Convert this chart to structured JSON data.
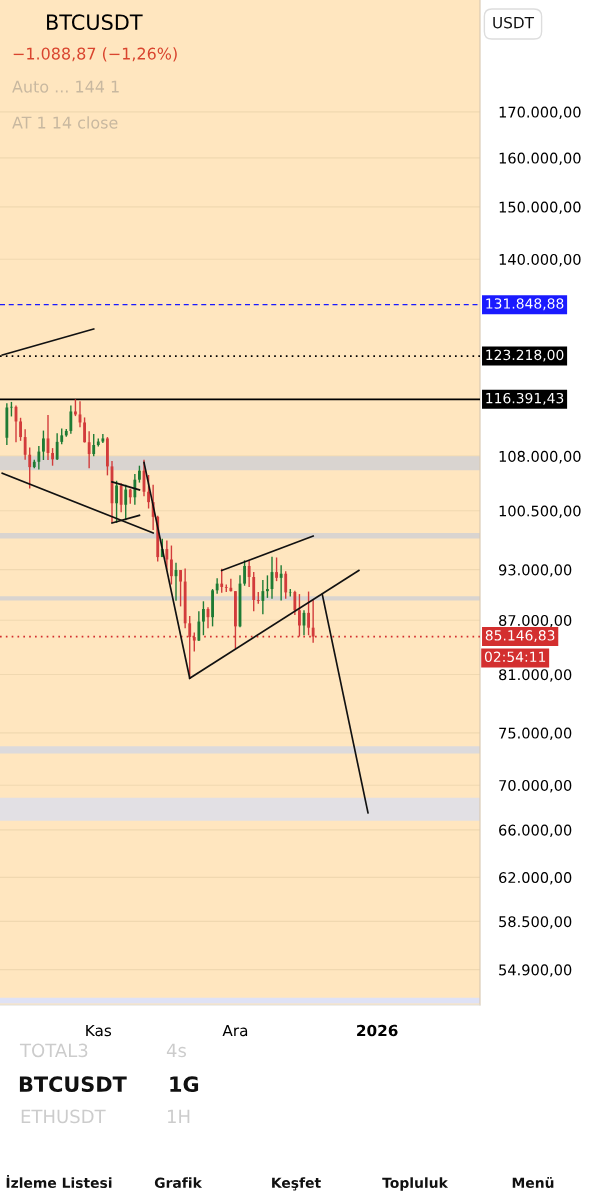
{
  "chart_data": {
    "type": "candlestick",
    "title": "BTCUSDT",
    "subtitle": "−1.088,87 (−1,26%)",
    "categories": [
      null,
      null,
      null,
      null,
      null,
      null,
      null,
      null,
      null,
      null,
      null,
      null,
      null,
      null,
      null,
      null,
      null,
      null,
      null,
      null,
      null,
      "Kas",
      null,
      null,
      null,
      null,
      null,
      null,
      null,
      null,
      null,
      null,
      null,
      null,
      null,
      null,
      null,
      null,
      null,
      null,
      null,
      null,
      null,
      null,
      null,
      null,
      null,
      null,
      null,
      null,
      null,
      "Ara",
      null,
      null,
      null,
      null,
      null,
      null,
      null,
      null,
      null,
      null,
      null,
      null,
      null,
      null,
      null,
      null,
      null,
      null,
      null,
      null,
      null,
      null,
      null,
      null,
      null,
      null,
      null,
      null,
      null,
      null,
      "2026",
      null,
      null,
      null,
      null,
      null,
      null,
      null,
      null,
      null,
      null,
      null,
      null,
      null,
      null,
      null,
      null,
      null,
      null,
      null,
      null,
      null,
      null
    ],
    "ohlc": [
      null,
      [
        110650,
        115800,
        109600,
        115150
      ],
      [
        115150,
        116000,
        113800,
        115250
      ],
      [
        115250,
        115450,
        110000,
        113050
      ],
      [
        113050,
        113600,
        110200,
        110750
      ],
      [
        110750,
        111900,
        107500,
        108200
      ],
      [
        108200,
        109250,
        103500,
        106450
      ],
      [
        106450,
        107500,
        106300,
        107200
      ],
      [
        107200,
        109450,
        106100,
        108650
      ],
      [
        108650,
        111700,
        107450,
        110550
      ],
      [
        110550,
        114000,
        107450,
        108450
      ],
      [
        108450,
        109150,
        106650,
        107550
      ],
      [
        107550,
        111300,
        107450,
        110050
      ],
      [
        110050,
        112000,
        109700,
        111000
      ],
      [
        111000,
        111950,
        110800,
        111650
      ],
      [
        111650,
        115450,
        111250,
        114550
      ],
      [
        114550,
        116400,
        113850,
        114100
      ],
      [
        114100,
        116100,
        112200,
        112900
      ],
      [
        112900,
        113650,
        109950,
        110000
      ],
      [
        110000,
        111600,
        106300,
        108300
      ],
      [
        108300,
        111200,
        108000,
        109600
      ],
      [
        109600,
        110550,
        109400,
        110100
      ],
      [
        110100,
        111200,
        109900,
        110550
      ],
      [
        110550,
        110750,
        105300,
        106550
      ],
      [
        106550,
        107300,
        98950,
        101500
      ],
      [
        101500,
        104550,
        98900,
        103900
      ],
      [
        103900,
        104200,
        100300,
        101300
      ],
      [
        101300,
        104000,
        99250,
        103350
      ],
      [
        103350,
        103450,
        101450,
        102300
      ],
      [
        102300,
        105500,
        101300,
        104700
      ],
      [
        104700,
        106650,
        104300,
        105950
      ],
      [
        105950,
        107500,
        102450,
        103050
      ],
      [
        103050,
        105350,
        100800,
        101650
      ],
      [
        101650,
        104000,
        98000,
        99700
      ],
      [
        99700,
        99850,
        94000,
        94550
      ],
      [
        94550,
        96850,
        94550,
        95550
      ],
      [
        95550,
        96650,
        93000,
        94250
      ],
      [
        94250,
        96000,
        91200,
        92200
      ],
      [
        92200,
        93850,
        89250,
        92950
      ],
      [
        92950,
        92950,
        88600,
        91550
      ],
      [
        91550,
        93150,
        86100,
        86650
      ],
      [
        86650,
        87500,
        80600,
        85100
      ],
      [
        85100,
        85600,
        83500,
        84700
      ],
      [
        84700,
        88050,
        84650,
        86850
      ],
      [
        86850,
        89200,
        85300,
        88300
      ],
      [
        88300,
        88500,
        86100,
        87350
      ],
      [
        87350,
        90650,
        86300,
        90500
      ],
      [
        90500,
        91950,
        90100,
        91300
      ],
      [
        91300,
        93100,
        90200,
        90900
      ],
      [
        90900,
        91200,
        90300,
        90800
      ],
      [
        90800,
        91900,
        90350,
        90400
      ],
      [
        90400,
        90400,
        83800,
        86300
      ],
      [
        86300,
        92300,
        86200,
        91300
      ],
      [
        91300,
        94150,
        91050,
        93450
      ],
      [
        93450,
        94100,
        90900,
        92100
      ],
      [
        92100,
        92700,
        88050,
        89350
      ],
      [
        89350,
        90300,
        88900,
        89250
      ],
      [
        89250,
        91750,
        87700,
        90400
      ],
      [
        90400,
        92300,
        89600,
        90650
      ],
      [
        90650,
        94600,
        89500,
        92700
      ],
      [
        92700,
        94500,
        91600,
        92000
      ],
      [
        92000,
        93550,
        89300,
        92500
      ],
      [
        92500,
        92800,
        89500,
        90250
      ],
      [
        90250,
        90650,
        89750,
        90300
      ],
      [
        90300,
        90450,
        87600,
        88150
      ],
      [
        88150,
        90050,
        85150,
        86400
      ],
      [
        86400,
        88150,
        85300,
        87850
      ],
      [
        87850,
        90350,
        85300,
        86150
      ],
      [
        86150,
        89450,
        84450,
        85150
      ],
      null,
      null,
      null,
      null,
      null,
      null,
      null,
      null,
      null,
      null,
      null,
      null,
      null,
      null,
      null,
      null,
      null,
      null,
      null,
      null,
      null,
      null,
      null,
      null,
      null,
      null,
      null,
      null,
      null,
      null,
      null,
      null,
      null,
      null,
      null,
      null
    ],
    "series": [
      {
        "type": "line",
        "color": "#111111",
        "values": [
          123400,
          null,
          null,
          null,
          null,
          null,
          null,
          null,
          null,
          null,
          null,
          null,
          null,
          null,
          null,
          null,
          null,
          null,
          null,
          null,
          127700,
          null,
          null,
          null,
          null,
          null,
          null,
          null,
          null,
          null,
          null,
          null,
          null,
          null,
          null,
          null,
          null,
          null,
          null,
          null,
          null,
          null,
          null,
          null,
          null,
          null,
          null,
          null,
          null,
          null,
          null,
          null,
          null,
          null,
          null,
          null,
          null,
          null,
          null,
          null,
          null,
          null,
          null,
          null,
          null,
          null,
          null,
          null,
          null,
          null,
          null,
          null,
          null,
          null,
          null,
          null,
          null,
          null,
          null,
          null,
          null,
          null,
          null,
          null,
          null,
          null,
          null,
          null,
          null,
          null,
          null,
          null,
          null,
          null,
          null,
          null,
          null,
          null,
          null,
          null,
          null,
          null,
          null,
          null,
          null
        ]
      },
      {
        "type": "line",
        "color": "#111111",
        "values": [
          105600,
          null,
          null,
          null,
          null,
          null,
          null,
          null,
          null,
          null,
          null,
          null,
          null,
          null,
          null,
          null,
          null,
          null,
          null,
          null,
          null,
          null,
          null,
          null,
          null,
          null,
          null,
          null,
          null,
          null,
          null,
          null,
          null,
          97600,
          null,
          null,
          null,
          null,
          null,
          null,
          null,
          null,
          null,
          null,
          null,
          null,
          null,
          null,
          null,
          null,
          null,
          null,
          null,
          null,
          null,
          null,
          null,
          null,
          null,
          null,
          null,
          null,
          null,
          null,
          null,
          null,
          null,
          null,
          null,
          null,
          null,
          null,
          null,
          null,
          null,
          null,
          null,
          null,
          null,
          null,
          null,
          null,
          null,
          null,
          null,
          null,
          null,
          null,
          null,
          null,
          null,
          null,
          null,
          null,
          null,
          null,
          null,
          null,
          null,
          null,
          null,
          null,
          null,
          null,
          null
        ]
      },
      {
        "type": "line",
        "color": "#111111",
        "values": [
          null,
          null,
          null,
          null,
          null,
          null,
          null,
          null,
          null,
          null,
          null,
          null,
          null,
          null,
          null,
          null,
          null,
          null,
          null,
          null,
          null,
          null,
          null,
          null,
          104400,
          null,
          null,
          null,
          null,
          null,
          103300,
          null,
          null,
          null,
          null,
          null,
          null,
          null,
          null,
          null,
          null,
          null,
          null,
          null,
          null,
          null,
          null,
          null,
          null,
          null,
          null,
          null,
          null,
          null,
          null,
          null,
          null,
          null,
          null,
          null,
          null,
          null,
          null,
          null,
          null,
          null,
          null,
          null,
          null,
          null,
          null,
          null,
          null,
          null,
          null,
          null,
          null,
          null,
          null,
          null,
          null,
          null,
          null,
          null,
          null,
          null,
          null,
          null,
          null,
          null,
          null,
          null,
          null,
          null,
          null,
          null,
          null,
          null,
          null,
          null,
          null,
          null,
          null,
          null,
          null
        ]
      },
      {
        "type": "line",
        "color": "#111111",
        "values": [
          null,
          null,
          null,
          null,
          null,
          null,
          null,
          null,
          null,
          null,
          null,
          null,
          null,
          null,
          null,
          null,
          null,
          null,
          null,
          null,
          null,
          null,
          null,
          null,
          98900,
          null,
          null,
          null,
          null,
          null,
          99900,
          null,
          null,
          null,
          null,
          null,
          null,
          null,
          null,
          null,
          null,
          null,
          null,
          null,
          null,
          null,
          null,
          null,
          null,
          null,
          null,
          null,
          null,
          null,
          null,
          null,
          null,
          null,
          null,
          null,
          null,
          null,
          null,
          null,
          null,
          null,
          null,
          null,
          null,
          null,
          null,
          null,
          null,
          null,
          null,
          null,
          null,
          null,
          null,
          null,
          null,
          null,
          null,
          null,
          null,
          null,
          null,
          null,
          null,
          null,
          null,
          null,
          null,
          null,
          null,
          null,
          null,
          null,
          null,
          null,
          null,
          null,
          null,
          null,
          null
        ]
      },
      {
        "type": "line",
        "color": "#111111",
        "values": [
          null,
          null,
          null,
          null,
          null,
          null,
          null,
          null,
          null,
          null,
          null,
          null,
          null,
          null,
          null,
          null,
          null,
          null,
          null,
          null,
          null,
          null,
          null,
          null,
          null,
          null,
          null,
          null,
          null,
          null,
          null,
          107100,
          null,
          null,
          null,
          null,
          null,
          null,
          null,
          null,
          null,
          80600,
          null,
          null,
          null,
          null,
          null,
          null,
          null,
          null,
          null,
          null,
          null,
          null,
          null,
          null,
          null,
          null,
          null,
          null,
          null,
          null,
          null,
          null,
          null,
          null,
          null,
          null,
          null,
          null,
          null,
          null,
          null,
          null,
          null,
          null,
          null,
          null,
          null,
          null,
          null,
          null,
          null,
          null,
          null,
          null,
          null,
          null,
          null,
          null,
          null,
          null,
          null,
          null,
          null,
          null,
          null,
          null,
          null,
          null,
          null,
          null,
          null,
          null,
          null
        ]
      },
      {
        "type": "line",
        "color": "#111111",
        "values": [
          null,
          null,
          null,
          null,
          null,
          null,
          null,
          null,
          null,
          null,
          null,
          null,
          null,
          null,
          null,
          null,
          null,
          null,
          null,
          null,
          null,
          null,
          null,
          null,
          null,
          null,
          null,
          null,
          null,
          null,
          null,
          null,
          null,
          null,
          null,
          null,
          null,
          null,
          null,
          null,
          null,
          80600,
          null,
          null,
          null,
          null,
          null,
          null,
          null,
          null,
          null,
          null,
          null,
          null,
          null,
          null,
          null,
          null,
          null,
          null,
          null,
          null,
          null,
          null,
          null,
          null,
          null,
          null,
          null,
          null,
          null,
          null,
          null,
          null,
          null,
          null,
          null,
          null,
          92900,
          null,
          null,
          null,
          null,
          null,
          null,
          null,
          null,
          null,
          null,
          null,
          null,
          null,
          null,
          null,
          null,
          null,
          null,
          null,
          null,
          null,
          null,
          null,
          null,
          null,
          null
        ]
      },
      {
        "type": "line",
        "color": "#111111",
        "values": [
          null,
          null,
          null,
          null,
          null,
          null,
          null,
          null,
          null,
          null,
          null,
          null,
          null,
          null,
          null,
          null,
          null,
          null,
          null,
          null,
          null,
          null,
          null,
          null,
          null,
          null,
          null,
          null,
          null,
          null,
          null,
          null,
          null,
          null,
          null,
          null,
          null,
          null,
          null,
          null,
          null,
          null,
          null,
          null,
          null,
          null,
          null,
          null,
          92900,
          null,
          null,
          null,
          null,
          null,
          null,
          null,
          null,
          null,
          null,
          null,
          null,
          null,
          null,
          null,
          null,
          null,
          null,
          null,
          97200,
          null,
          null,
          null,
          null,
          null,
          null,
          null,
          null,
          null,
          null,
          null,
          null,
          null,
          null,
          null,
          null,
          null,
          null,
          null,
          null,
          null,
          null,
          null,
          null,
          null,
          null,
          null,
          null,
          null,
          null,
          null,
          null,
          null,
          null,
          null,
          null
        ]
      },
      {
        "type": "line",
        "color": "#111111",
        "values": [
          null,
          null,
          null,
          null,
          null,
          null,
          null,
          null,
          null,
          null,
          null,
          null,
          null,
          null,
          null,
          null,
          null,
          null,
          null,
          null,
          null,
          null,
          null,
          null,
          null,
          null,
          null,
          null,
          null,
          null,
          null,
          null,
          null,
          null,
          null,
          null,
          null,
          null,
          null,
          null,
          null,
          null,
          null,
          null,
          null,
          null,
          null,
          null,
          null,
          null,
          null,
          null,
          null,
          null,
          null,
          null,
          null,
          null,
          null,
          null,
          null,
          null,
          null,
          null,
          null,
          null,
          null,
          null,
          null,
          null,
          90000,
          null,
          null,
          null,
          null,
          null,
          null,
          null,
          null,
          null,
          67500,
          null,
          null,
          null,
          null,
          null,
          null,
          null,
          null,
          null,
          null,
          null,
          null,
          null,
          null,
          null,
          null,
          null,
          null,
          null,
          null,
          null,
          null,
          null,
          null
        ]
      }
    ],
    "log": true,
    "ylim": [
      52400,
      197000
    ],
    "yticks": [
      {
        "value": 170000,
        "label": "170.000,00"
      },
      {
        "value": 160000,
        "label": "160.000,00"
      },
      {
        "value": 150000,
        "label": "150.000,00"
      },
      {
        "value": 140000,
        "label": "140.000,00"
      },
      {
        "value": 108000,
        "label": "108.000,00"
      },
      {
        "value": 100500,
        "label": "100.500,00"
      },
      {
        "value": 93000,
        "label": "93.000,00"
      },
      {
        "value": 87000,
        "label": "87.000,00"
      },
      {
        "value": 81000,
        "label": "81.000,00"
      },
      {
        "value": 75000,
        "label": "75.000,00"
      },
      {
        "value": 70000,
        "label": "70.000,00"
      },
      {
        "value": 66000,
        "label": "66.000,00"
      },
      {
        "value": 62000,
        "label": "62.000,00"
      },
      {
        "value": 58500,
        "label": "58.500,00"
      },
      {
        "value": 54900,
        "label": "54.900,00"
      }
    ],
    "grid": "y",
    "ref_lines": [
      {
        "axis": "y",
        "value": 131848.88,
        "label": "131.848,88",
        "color": "#1a1aff",
        "line_style": "dashed"
      },
      {
        "axis": "y",
        "value": 123218.0,
        "label": "123.218,00",
        "color": "#000000",
        "line_style": "dotted"
      },
      {
        "axis": "y",
        "value": 116391.43,
        "label": "116.391,43",
        "color": "#000000",
        "line_style": "solid"
      },
      {
        "axis": "y",
        "value": 85146.83,
        "label": "85.146,83",
        "color": "#d32f2f",
        "line_style": "dotted"
      }
    ],
    "bands": [
      {
        "axis": "y",
        "from": 106000,
        "to": 108000,
        "color": "#d9d4d0"
      },
      {
        "axis": "y",
        "from": 96900,
        "to": 97600,
        "color": "#d9d4d0"
      },
      {
        "axis": "y",
        "from": 89300,
        "to": 89800,
        "color": "#d9d4d0"
      },
      {
        "axis": "y",
        "from": 73000,
        "to": 73700,
        "color": "#dcdadc"
      },
      {
        "axis": "y",
        "from": 66800,
        "to": 68850,
        "color": "#e2e0e4"
      },
      {
        "axis": "y",
        "from": 52500,
        "to": 52900,
        "color": "#dfe2f5"
      }
    ],
    "annotations": [
      "Auto ... 144 1",
      "AT 1 14 close",
      "USDT",
      "02:54:11",
      "TOTAL3",
      "4s",
      "BTCUSDT",
      "1G",
      "ETHUSDT",
      "1H",
      "İzleme Listesi",
      "Grafik",
      "Keşfet",
      "Topluluk",
      "Menü"
    ]
  }
}
